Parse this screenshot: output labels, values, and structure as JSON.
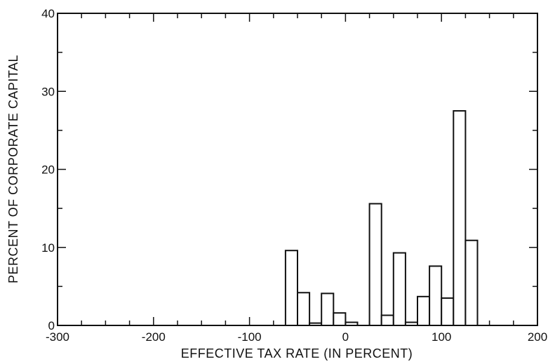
{
  "chart_data": {
    "type": "bar",
    "title": "",
    "xlabel": "EFFECTIVE TAX RATE (IN PERCENT)",
    "ylabel": "PERCENT OF CORPORATE CAPITAL",
    "xlim": [
      -300,
      200
    ],
    "ylim": [
      0,
      40
    ],
    "xticks": [
      -300,
      -200,
      -100,
      0,
      100,
      200
    ],
    "xtick_labels": [
      "-300",
      "-200",
      "-100",
      "0",
      "100",
      "200"
    ],
    "yticks": [
      0,
      10,
      20,
      30,
      40
    ],
    "ytick_labels": [
      "0",
      "10",
      "20",
      "30",
      "40"
    ],
    "bin_width": 12.5,
    "bins": [
      {
        "x0": -62.5,
        "x1": -50,
        "value": 9.6
      },
      {
        "x0": -50,
        "x1": -37.5,
        "value": 4.2
      },
      {
        "x0": -37.5,
        "x1": -25,
        "value": 0.3
      },
      {
        "x0": -25,
        "x1": -12.5,
        "value": 4.1
      },
      {
        "x0": -12.5,
        "x1": 0,
        "value": 1.6
      },
      {
        "x0": 0,
        "x1": 12.5,
        "value": 0.4
      },
      {
        "x0": 12.5,
        "x1": 25,
        "value": 0.0
      },
      {
        "x0": 25,
        "x1": 37.5,
        "value": 15.6
      },
      {
        "x0": 37.5,
        "x1": 50,
        "value": 1.3
      },
      {
        "x0": 50,
        "x1": 62.5,
        "value": 9.3
      },
      {
        "x0": 62.5,
        "x1": 75,
        "value": 0.4
      },
      {
        "x0": 75,
        "x1": 87.5,
        "value": 3.7
      },
      {
        "x0": 87.5,
        "x1": 100,
        "value": 7.6
      },
      {
        "x0": 100,
        "x1": 112.5,
        "value": 3.5
      },
      {
        "x0": 112.5,
        "x1": 125,
        "value": 27.5
      },
      {
        "x0": 125,
        "x1": 137.5,
        "value": 10.9
      }
    ],
    "minor_x_step": 25,
    "minor_y_step": 5,
    "grid": false,
    "legend": "none"
  }
}
